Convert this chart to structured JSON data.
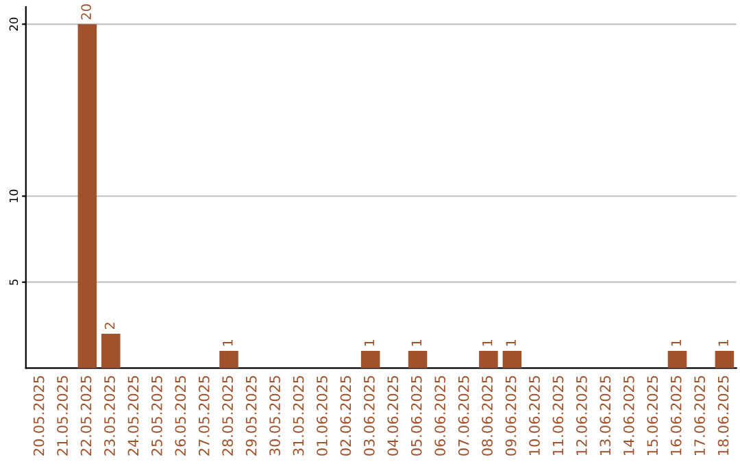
{
  "chart_data": {
    "type": "bar",
    "categories": [
      "20.05.2025",
      "21.05.2025",
      "22.05.2025",
      "23.05.2025",
      "24.05.2025",
      "25.05.2025",
      "26.05.2025",
      "27.05.2025",
      "28.05.2025",
      "29.05.2025",
      "30.05.2025",
      "31.05.2025",
      "01.06.2025",
      "02.06.2025",
      "03.06.2025",
      "04.06.2025",
      "05.06.2025",
      "06.06.2025",
      "07.06.2025",
      "08.06.2025",
      "09.06.2025",
      "10.06.2025",
      "11.06.2025",
      "12.06.2025",
      "13.06.2025",
      "14.06.2025",
      "15.06.2025",
      "16.06.2025",
      "17.06.2025",
      "18.06.2025"
    ],
    "values": [
      0,
      0,
      20,
      2,
      0,
      0,
      0,
      0,
      1,
      0,
      0,
      0,
      0,
      0,
      1,
      0,
      1,
      0,
      0,
      1,
      1,
      0,
      0,
      0,
      0,
      0,
      0,
      1,
      0,
      1
    ],
    "value_labels": [
      null,
      null,
      "20",
      "2",
      null,
      null,
      null,
      null,
      "1",
      null,
      null,
      null,
      null,
      null,
      "1",
      null,
      "1",
      null,
      null,
      "1",
      "1",
      null,
      null,
      null,
      null,
      null,
      null,
      "1",
      null,
      "1"
    ],
    "color": "#a0522d",
    "ylim": [
      0,
      21
    ],
    "yticks": [
      5,
      10,
      20
    ],
    "grid": "y"
  }
}
